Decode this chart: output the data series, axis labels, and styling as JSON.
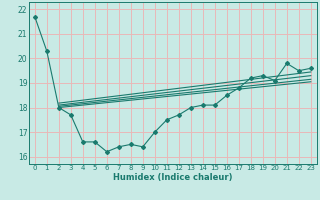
{
  "bg_color": "#c8eae5",
  "grid_color": "#e8b8b8",
  "line_color": "#1a7a6e",
  "xlabel": "Humidex (Indice chaleur)",
  "ylim": [
    15.7,
    22.3
  ],
  "xlim": [
    -0.5,
    23.5
  ],
  "yticks": [
    16,
    17,
    18,
    19,
    20,
    21,
    22
  ],
  "xticks": [
    0,
    1,
    2,
    3,
    4,
    5,
    6,
    7,
    8,
    9,
    10,
    11,
    12,
    13,
    14,
    15,
    16,
    17,
    18,
    19,
    20,
    21,
    22,
    23
  ],
  "main_x": [
    0,
    1,
    2,
    3,
    4,
    5,
    6,
    7,
    8,
    9,
    10,
    11,
    12,
    13,
    14,
    15,
    16,
    17,
    18,
    19,
    20,
    21,
    22,
    23
  ],
  "main_y": [
    21.7,
    20.3,
    18.0,
    17.7,
    16.6,
    16.6,
    16.2,
    16.4,
    16.5,
    16.4,
    17.0,
    17.5,
    17.7,
    18.0,
    18.1,
    18.1,
    18.5,
    18.8,
    19.2,
    19.3,
    19.1,
    19.8,
    19.5,
    19.6
  ],
  "reg_lines": [
    {
      "x0": 2,
      "y0": 18.0,
      "x1": 23,
      "y1": 19.05
    },
    {
      "x0": 2,
      "y0": 18.05,
      "x1": 23,
      "y1": 19.15
    },
    {
      "x0": 2,
      "y0": 18.1,
      "x1": 23,
      "y1": 19.3
    },
    {
      "x0": 2,
      "y0": 18.18,
      "x1": 23,
      "y1": 19.45
    }
  ],
  "xtick_fontsize": 5.0,
  "ytick_fontsize": 5.5,
  "xlabel_fontsize": 6.0
}
